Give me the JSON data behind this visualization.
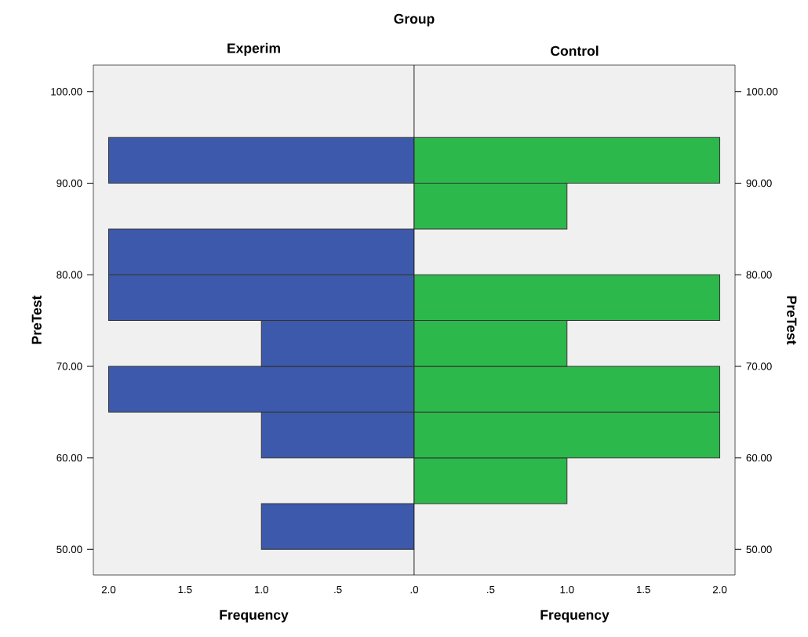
{
  "chart_data": [
    {
      "type": "histogram",
      "orientation": "horizontal",
      "title": "Group",
      "subtitle": "Experim",
      "xlabel": "Frequency",
      "ylabel": "PreTest",
      "color": "#3d59ab",
      "bins": [
        50,
        55,
        60,
        65,
        70,
        75,
        80,
        85,
        90,
        95
      ],
      "values": [
        1,
        0,
        1,
        2,
        1,
        2,
        2,
        0,
        2
      ],
      "xlim": [
        2.1,
        0
      ],
      "xticks": [
        {
          "value": 2,
          "label": "2.0"
        },
        {
          "value": 1.5,
          "label": "1.5"
        },
        {
          "value": 1,
          "label": "1.0"
        },
        {
          "value": 0.5,
          "label": ".5"
        }
      ],
      "ylim": [
        47.2,
        102.9
      ],
      "yticks": [
        {
          "value": 50,
          "label": "50.00"
        },
        {
          "value": 60,
          "label": "60.00"
        },
        {
          "value": 70,
          "label": "70.00"
        },
        {
          "value": 80,
          "label": "80.00"
        },
        {
          "value": 90,
          "label": "90.00"
        },
        {
          "value": 100,
          "label": "100.00"
        }
      ],
      "grid": false
    },
    {
      "type": "histogram",
      "orientation": "horizontal",
      "subtitle": "Control",
      "xlabel": "Frequency",
      "color": "#2db84c",
      "bins": [
        50,
        55,
        60,
        65,
        70,
        75,
        80,
        85,
        90,
        95
      ],
      "values": [
        0,
        1,
        2,
        2,
        1,
        2,
        0,
        1,
        2
      ],
      "ylabel": "PreTest",
      "xlim": [
        0,
        2.1
      ],
      "xticks": [
        {
          "value": 0,
          "label": ".0"
        },
        {
          "value": 0.5,
          "label": ".5"
        },
        {
          "value": 1,
          "label": "1.0"
        },
        {
          "value": 1.5,
          "label": "1.5"
        },
        {
          "value": 2,
          "label": "2.0"
        }
      ],
      "ylim": [
        47.2,
        102.9
      ],
      "yticks": [
        {
          "value": 50,
          "label": "50.00"
        },
        {
          "value": 60,
          "label": "60.00"
        },
        {
          "value": 70,
          "label": "70.00"
        },
        {
          "value": 80,
          "label": "80.00"
        },
        {
          "value": 90,
          "label": "90.00"
        },
        {
          "value": 100,
          "label": "100.00"
        }
      ],
      "grid": false
    }
  ]
}
